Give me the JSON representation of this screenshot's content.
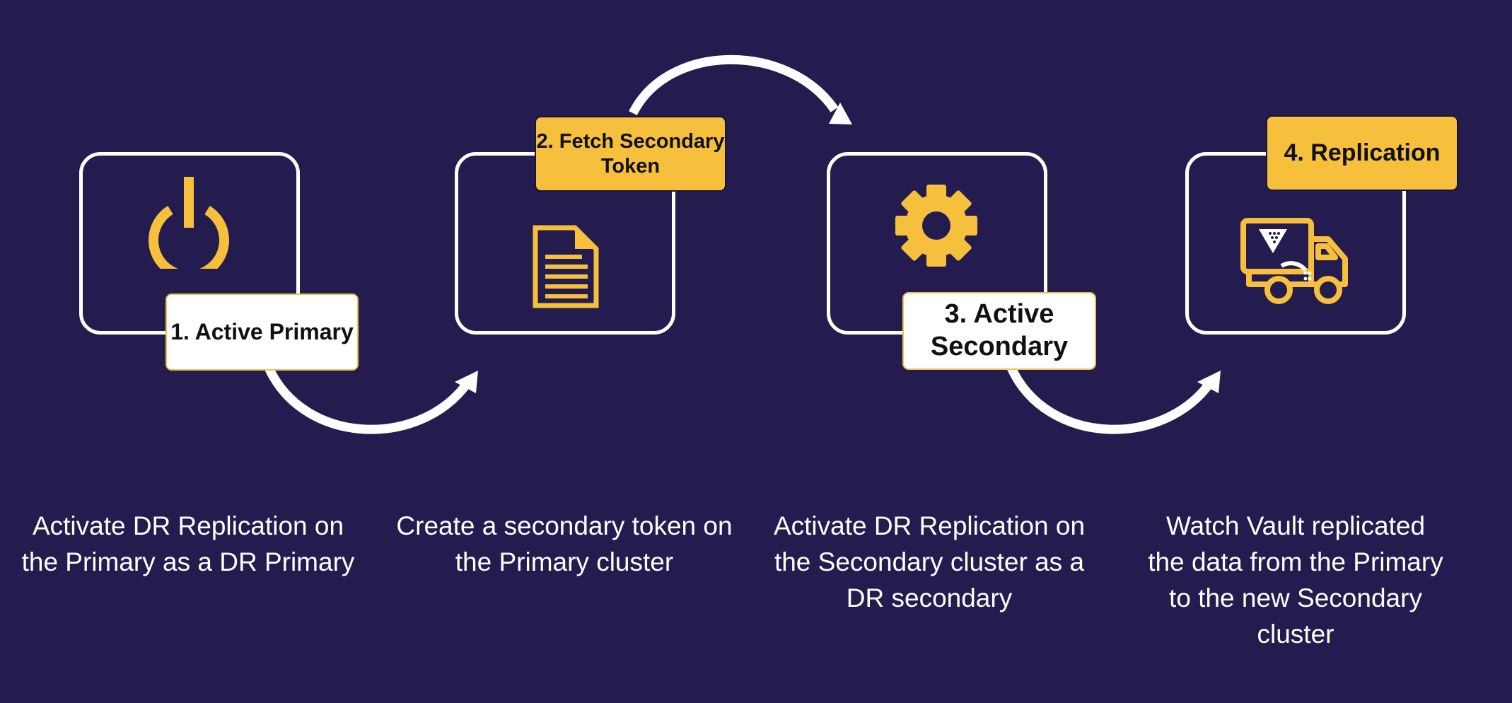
{
  "colors": {
    "background": "#241b4f",
    "accent": "#f6bf3c",
    "outline": "#ffffff"
  },
  "steps": [
    {
      "label": "1. Active Primary",
      "icon": "power-icon",
      "description": "Activate DR Replication on the Primary as a DR Primary"
    },
    {
      "label": "2. Fetch Secondary Token",
      "icon": "document-icon",
      "description": "Create a secondary token on the Primary cluster"
    },
    {
      "label": "3. Active Secondary",
      "icon": "gear-icon",
      "description": "Activate DR Replication on the Secondary cluster as a DR secondary"
    },
    {
      "label": "4. Replication",
      "icon": "vault-truck-icon",
      "description": "Watch Vault replicated the data from the Primary to the new Secondary cluster"
    }
  ]
}
